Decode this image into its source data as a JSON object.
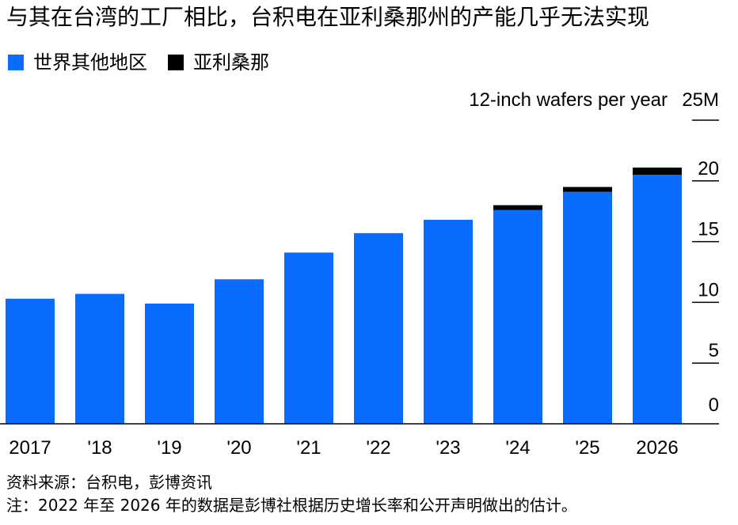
{
  "title": "与其在台湾的工厂相比，台积电在亚利桑那州的产能几乎无法实现",
  "legend": [
    {
      "label": "世界其他地区",
      "color": "#0a6cff"
    },
    {
      "label": "亚利桑那",
      "color": "#000000"
    }
  ],
  "chart_data": {
    "type": "bar",
    "stacked": true,
    "categories": [
      "2017",
      "'18",
      "'19",
      "'20",
      "'21",
      "'22",
      "'23",
      "'24",
      "'25",
      "2026"
    ],
    "series": [
      {
        "name": "世界其他地区",
        "color": "#0a6cff",
        "values": [
          10.3,
          10.7,
          9.9,
          11.9,
          14.1,
          15.7,
          16.8,
          17.6,
          19.1,
          20.5
        ]
      },
      {
        "name": "亚利桑那",
        "color": "#000000",
        "values": [
          0,
          0,
          0,
          0,
          0,
          0,
          0,
          0.4,
          0.4,
          0.6
        ]
      }
    ],
    "ylabel": "12-inch wafers per year",
    "y_ticks": [
      0,
      5,
      10,
      15,
      20,
      25
    ],
    "y_tick_labels": [
      "0",
      "5",
      "10",
      "15",
      "20",
      "25M"
    ],
    "ylim": [
      0,
      25
    ],
    "y_axis_side": "right",
    "grid": false
  },
  "source": "资料来源：台积电，彭博资讯",
  "note": "注：2022 年至 2026 年的数据是彭博社根据历史增长率和公开声明做出的估计。"
}
